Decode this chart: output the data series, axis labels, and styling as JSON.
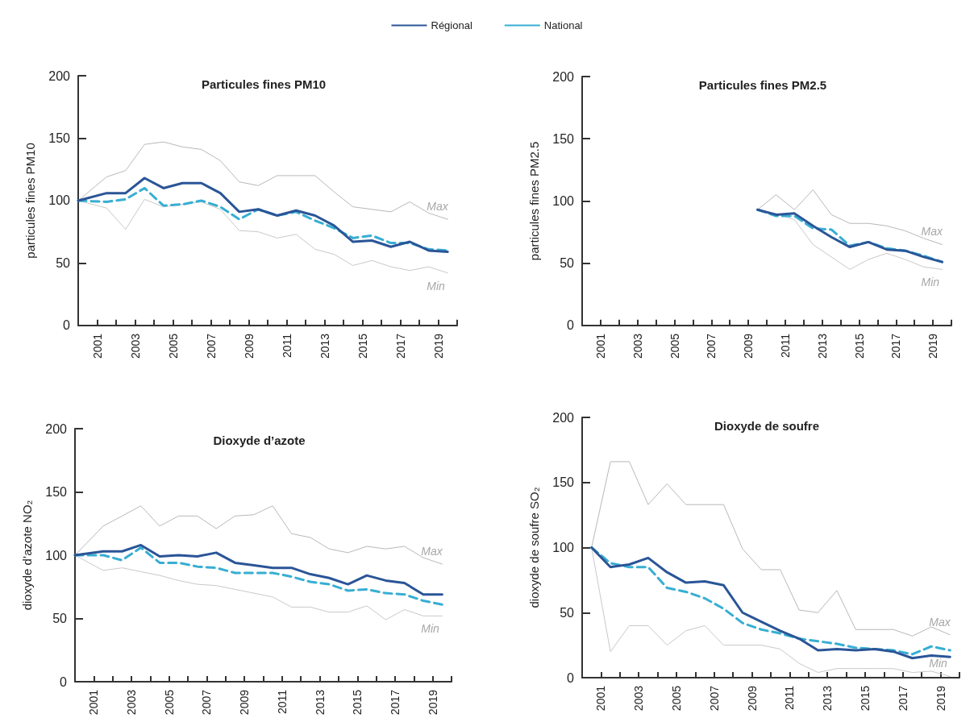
{
  "chart_data": [
    {
      "type": "line",
      "title": "Particules fines PM10",
      "ylabel": "particules fines PM10",
      "legend": "top",
      "marker": "none",
      "xlim": [
        2000,
        2020
      ],
      "ylim": [
        0,
        200
      ],
      "yticks": [
        0,
        50,
        100,
        150,
        200
      ],
      "xticks": [
        {
          "value": 2001,
          "label": "2001"
        },
        {
          "value": 2002,
          "label": null
        },
        {
          "value": 2003,
          "label": "2003"
        },
        {
          "value": 2004,
          "label": null
        },
        {
          "value": 2005,
          "label": "2005"
        },
        {
          "value": 2006,
          "label": null
        },
        {
          "value": 2007,
          "label": "2007"
        },
        {
          "value": 2008,
          "label": null
        },
        {
          "value": 2009,
          "label": "2009"
        },
        {
          "value": 2010,
          "label": null
        },
        {
          "value": 2011,
          "label": "2011"
        },
        {
          "value": 2012,
          "label": null
        },
        {
          "value": 2013,
          "label": "2013"
        },
        {
          "value": 2014,
          "label": null
        },
        {
          "value": 2015,
          "label": "2015"
        },
        {
          "value": 2016,
          "label": null
        },
        {
          "value": 2017,
          "label": "2017"
        },
        {
          "value": 2018,
          "label": null
        },
        {
          "value": 2019,
          "label": "2019"
        },
        {
          "value": 2020,
          "label": null
        }
      ],
      "x": [
        2000,
        2001.5,
        2002.5,
        2003.5,
        2004.5,
        2005.5,
        2006.5,
        2007.5,
        2008.5,
        2009.5,
        2010.5,
        2011.5,
        2012.5,
        2013.5,
        2014.5,
        2015.5,
        2016.5,
        2017.5,
        2018.5,
        2019.5
      ],
      "series": [
        {
          "name": "Régional",
          "color": "#2a5597",
          "line_style": "solid",
          "values": [
            100,
            106,
            106,
            118,
            110,
            114,
            114,
            106,
            91,
            93,
            88,
            92,
            88,
            80,
            67,
            68,
            63,
            67,
            60,
            59
          ]
        },
        {
          "name": "National",
          "color": "#37aed3",
          "line_style": "dashed",
          "values": [
            100,
            99,
            101,
            110,
            96,
            97,
            100,
            95,
            85,
            93,
            88,
            91,
            84,
            78,
            70,
            72,
            66,
            66,
            61,
            60
          ]
        },
        {
          "name": "Max",
          "color": "#b8b8b8",
          "line_style": "solid",
          "values": [
            100,
            119,
            124,
            145,
            147,
            143,
            141,
            132,
            115,
            112,
            120,
            120,
            120,
            107,
            95,
            93,
            91,
            99,
            90,
            85
          ]
        },
        {
          "name": "Min",
          "color": "#c8c8c8",
          "line_style": "solid",
          "values": [
            100,
            94,
            77,
            101,
            95,
            97,
            99,
            93,
            76,
            75,
            70,
            73,
            61,
            57,
            48,
            52,
            47,
            44,
            47,
            42
          ]
        }
      ]
    },
    {
      "type": "line",
      "title": "Particules fines PM2.5",
      "ylabel": "particules fines PM2.5",
      "marker": "none",
      "xlim": [
        2000,
        2020
      ],
      "ylim": [
        0,
        200
      ],
      "yticks": [
        0,
        50,
        100,
        150,
        200
      ],
      "xticks": [
        {
          "value": 2001,
          "label": "2001"
        },
        {
          "value": 2002,
          "label": null
        },
        {
          "value": 2003,
          "label": "2003"
        },
        {
          "value": 2004,
          "label": null
        },
        {
          "value": 2005,
          "label": "2005"
        },
        {
          "value": 2006,
          "label": null
        },
        {
          "value": 2007,
          "label": "2007"
        },
        {
          "value": 2008,
          "label": null
        },
        {
          "value": 2009,
          "label": "2009"
        },
        {
          "value": 2010,
          "label": null
        },
        {
          "value": 2011,
          "label": "2011"
        },
        {
          "value": 2012,
          "label": null
        },
        {
          "value": 2013,
          "label": "2013"
        },
        {
          "value": 2014,
          "label": null
        },
        {
          "value": 2015,
          "label": "2015"
        },
        {
          "value": 2016,
          "label": null
        },
        {
          "value": 2017,
          "label": "2017"
        },
        {
          "value": 2018,
          "label": null
        },
        {
          "value": 2019,
          "label": "2019"
        },
        {
          "value": 2020,
          "label": null
        }
      ],
      "x": [
        2009.5,
        2010.5,
        2011.5,
        2012.5,
        2013.5,
        2014.5,
        2015.5,
        2016.5,
        2017.5,
        2018.5,
        2019.5
      ],
      "series": [
        {
          "color": "#2a5597",
          "line_style": "solid",
          "values": [
            93,
            89,
            90,
            80,
            71,
            63,
            67,
            61,
            60,
            55,
            51
          ]
        },
        {
          "color": "#37aed3",
          "line_style": "dashed",
          "values": [
            93,
            88,
            88,
            78,
            77,
            64,
            67,
            62,
            60,
            56,
            51
          ]
        },
        {
          "name": "Max",
          "color": "#b8b8b8",
          "line_style": "solid",
          "values": [
            93,
            105,
            93,
            109,
            89,
            82,
            82,
            80,
            76,
            70,
            65
          ]
        },
        {
          "name": "Min",
          "color": "#c8c8c8",
          "line_style": "solid",
          "values": [
            93,
            90,
            85,
            65,
            55,
            45,
            53,
            58,
            53,
            47,
            45
          ]
        }
      ]
    },
    {
      "type": "line",
      "title": "Dioxyde d’azote",
      "ylabel": "dioxyde d’azote NO₂",
      "marker": "none",
      "xlim": [
        2000,
        2020
      ],
      "ylim": [
        0,
        200
      ],
      "yticks": [
        0,
        50,
        100,
        150,
        200
      ],
      "xticks": [
        {
          "value": 2001,
          "label": "2001"
        },
        {
          "value": 2002,
          "label": null
        },
        {
          "value": 2003,
          "label": "2003"
        },
        {
          "value": 2004,
          "label": null
        },
        {
          "value": 2005,
          "label": "2005"
        },
        {
          "value": 2006,
          "label": null
        },
        {
          "value": 2007,
          "label": "2007"
        },
        {
          "value": 2008,
          "label": null
        },
        {
          "value": 2009,
          "label": "2009"
        },
        {
          "value": 2010,
          "label": null
        },
        {
          "value": 2011,
          "label": "2011"
        },
        {
          "value": 2012,
          "label": null
        },
        {
          "value": 2013,
          "label": "2013"
        },
        {
          "value": 2014,
          "label": null
        },
        {
          "value": 2015,
          "label": "2015"
        },
        {
          "value": 2016,
          "label": null
        },
        {
          "value": 2017,
          "label": "2017"
        },
        {
          "value": 2018,
          "label": null
        },
        {
          "value": 2019,
          "label": "2019"
        },
        {
          "value": 2020,
          "label": null
        }
      ],
      "x": [
        2000,
        2001.5,
        2002.5,
        2003.5,
        2004.5,
        2005.5,
        2006.5,
        2007.5,
        2008.5,
        2009.5,
        2010.5,
        2011.5,
        2012.5,
        2013.5,
        2014.5,
        2015.5,
        2016.5,
        2017.5,
        2018.5,
        2019.5
      ],
      "series": [
        {
          "color": "#2a5597",
          "line_style": "solid",
          "values": [
            100,
            103,
            103,
            108,
            99,
            100,
            99,
            102,
            94,
            92,
            90,
            90,
            85,
            82,
            77,
            84,
            80,
            78,
            69,
            69
          ]
        },
        {
          "color": "#37aed3",
          "line_style": "dashed",
          "values": [
            100,
            100,
            96,
            106,
            94,
            94,
            91,
            90,
            86,
            86,
            86,
            83,
            79,
            77,
            72,
            73,
            70,
            69,
            64,
            61
          ]
        },
        {
          "name": "Max",
          "color": "#b8b8b8",
          "line_style": "solid",
          "values": [
            100,
            123,
            131,
            139,
            123,
            131,
            131,
            121,
            131,
            132,
            139,
            117,
            114,
            105,
            102,
            107,
            105,
            107,
            98,
            93
          ]
        },
        {
          "name": "Min",
          "color": "#c8c8c8",
          "line_style": "solid",
          "values": [
            100,
            88,
            90,
            87,
            84,
            80,
            77,
            76,
            73,
            70,
            67,
            59,
            59,
            55,
            55,
            60,
            49,
            57,
            52,
            52
          ]
        }
      ]
    },
    {
      "type": "line",
      "title": "Dioxyde de soufre",
      "ylabel": "dioxyde de soufre SO₂",
      "marker": "none",
      "xlim": [
        2000,
        2020
      ],
      "ylim": [
        0,
        200
      ],
      "yticks": [
        0,
        50,
        100,
        150,
        200
      ],
      "xticks": [
        {
          "value": 2001,
          "label": "2001"
        },
        {
          "value": 2002,
          "label": null
        },
        {
          "value": 2003,
          "label": "2003"
        },
        {
          "value": 2004,
          "label": null
        },
        {
          "value": 2005,
          "label": "2005"
        },
        {
          "value": 2006,
          "label": null
        },
        {
          "value": 2007,
          "label": "2007"
        },
        {
          "value": 2008,
          "label": null
        },
        {
          "value": 2009,
          "label": "2009"
        },
        {
          "value": 2010,
          "label": null
        },
        {
          "value": 2011,
          "label": "2011"
        },
        {
          "value": 2012,
          "label": null
        },
        {
          "value": 2013,
          "label": "2013"
        },
        {
          "value": 2014,
          "label": null
        },
        {
          "value": 2015,
          "label": "2015"
        },
        {
          "value": 2016,
          "label": null
        },
        {
          "value": 2017,
          "label": "2017"
        },
        {
          "value": 2018,
          "label": null
        },
        {
          "value": 2019,
          "label": "2019"
        },
        {
          "value": 2020,
          "label": null
        }
      ],
      "x": [
        2000.5,
        2001.5,
        2002.5,
        2003.5,
        2004.5,
        2005.5,
        2006.5,
        2007.5,
        2008.5,
        2009.5,
        2010.5,
        2011.5,
        2012.5,
        2013.5,
        2014.5,
        2015.5,
        2016.5,
        2017.5,
        2018.5,
        2019.5
      ],
      "series": [
        {
          "color": "#2a5597",
          "line_style": "solid",
          "values": [
            100,
            85,
            87,
            92,
            81,
            73,
            74,
            71,
            50,
            43,
            36,
            30,
            21,
            22,
            21,
            22,
            20,
            15,
            17,
            16
          ]
        },
        {
          "color": "#37aed3",
          "line_style": "dashed",
          "values": [
            100,
            88,
            85,
            85,
            69,
            66,
            61,
            53,
            42,
            37,
            34,
            30,
            28,
            26,
            23,
            22,
            21,
            18,
            24,
            21
          ]
        },
        {
          "name": "Max",
          "color": "#b8b8b8",
          "line_style": "solid",
          "values": [
            100,
            166,
            166,
            133,
            149,
            133,
            133,
            133,
            99,
            83,
            83,
            52,
            50,
            67,
            37,
            37,
            37,
            32,
            39,
            33
          ]
        },
        {
          "name": "Min",
          "color": "#c8c8c8",
          "line_style": "solid",
          "values": [
            100,
            20,
            40,
            40,
            25,
            36,
            40,
            25,
            25,
            25,
            22,
            11,
            4,
            7,
            7,
            7,
            7,
            4,
            5,
            1
          ]
        }
      ]
    }
  ]
}
